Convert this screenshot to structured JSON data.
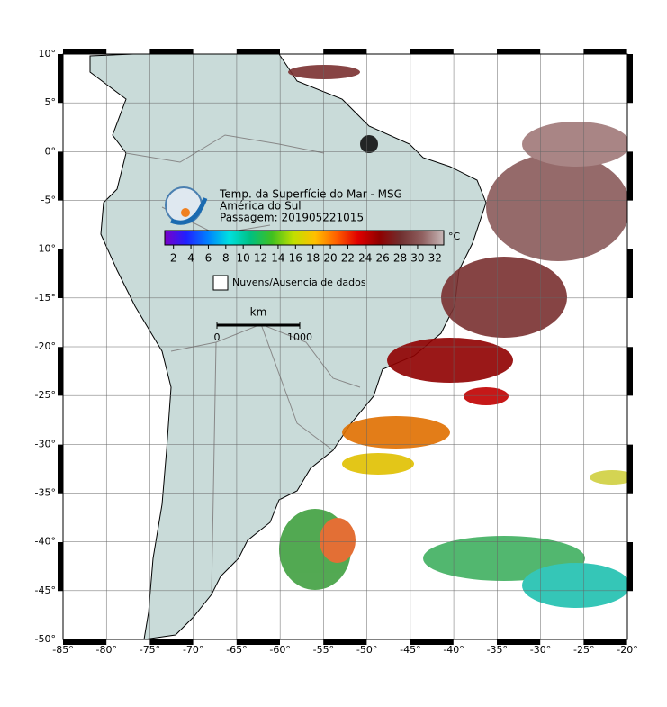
{
  "map": {
    "title": "Temp. da Superfície do Mar - MSG",
    "region": "América do Sul",
    "pass": "Passagem: 201905221015",
    "xlim": [
      -85,
      -20
    ],
    "ylim": [
      -50,
      10
    ],
    "xticks": [
      {
        "value": -85,
        "label": "-85°"
      },
      {
        "value": -80,
        "label": "-80°"
      },
      {
        "value": -75,
        "label": "-75°"
      },
      {
        "value": -70,
        "label": "-70°"
      },
      {
        "value": -65,
        "label": "-65°"
      },
      {
        "value": -60,
        "label": "-60°"
      },
      {
        "value": -55,
        "label": "-55°"
      },
      {
        "value": -50,
        "label": "-50°"
      },
      {
        "value": -45,
        "label": "-45°"
      },
      {
        "value": -40,
        "label": "-40°"
      },
      {
        "value": -35,
        "label": "-35°"
      },
      {
        "value": -30,
        "label": "-30°"
      },
      {
        "value": -25,
        "label": "-25°"
      },
      {
        "value": -20,
        "label": "-20°"
      }
    ],
    "yticks": [
      {
        "value": 10,
        "label": "10°"
      },
      {
        "value": 5,
        "label": "5°"
      },
      {
        "value": 0,
        "label": "0°"
      },
      {
        "value": -5,
        "label": "-5°"
      },
      {
        "value": -10,
        "label": "-10°"
      },
      {
        "value": -15,
        "label": "-15°"
      },
      {
        "value": -20,
        "label": "-20°"
      },
      {
        "value": -25,
        "label": "-25°"
      },
      {
        "value": -30,
        "label": "-30°"
      },
      {
        "value": -35,
        "label": "-35°"
      },
      {
        "value": -40,
        "label": "-40°"
      },
      {
        "value": -45,
        "label": "-45°"
      },
      {
        "value": -50,
        "label": "-50°"
      }
    ],
    "colorbar": {
      "unit": "°C",
      "lim": [
        1,
        33
      ],
      "ticks": [
        2,
        4,
        6,
        8,
        10,
        12,
        14,
        16,
        18,
        20,
        22,
        24,
        26,
        28,
        30,
        32
      ],
      "colors": [
        "#7a00c8",
        "#2020ff",
        "#0080ff",
        "#00e0e0",
        "#00c080",
        "#40c020",
        "#c0e000",
        "#ffc000",
        "#ff6000",
        "#e00000",
        "#900000",
        "#703030",
        "#906060",
        "#c8b8b8"
      ]
    },
    "legend": "Nuvens/Ausencia de dados",
    "scale": {
      "unit": "km",
      "start": 0,
      "end": 1000
    }
  }
}
